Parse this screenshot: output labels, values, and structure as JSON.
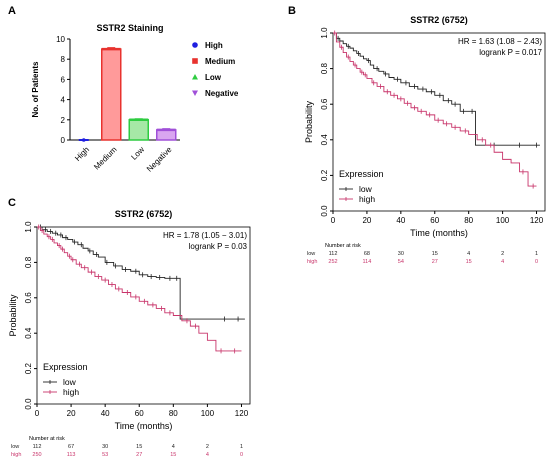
{
  "panels": {
    "a": "A",
    "b": "B",
    "c": "C"
  },
  "chart_data": [
    {
      "panel": "A",
      "type": "bar",
      "title": "SSTR2 Staining",
      "xlabel": "",
      "ylabel": "No. of Patients",
      "categories": [
        "High",
        "Medium",
        "Low",
        "Negative"
      ],
      "values": [
        0,
        9,
        2,
        1
      ],
      "errors": [
        0,
        0.12,
        0.08,
        0.1
      ],
      "ylim": [
        0,
        10
      ],
      "yticks": [
        0,
        2,
        4,
        6,
        8,
        10
      ],
      "colors": [
        "#1f1fe0",
        "#e8322e",
        "#2ecc40",
        "#a050d8"
      ],
      "fills": [
        "#1f1fe0",
        "#ff9a9a",
        "#a6e8a6",
        "#d9a6f0"
      ],
      "legend": {
        "position": "right",
        "entries": [
          {
            "label": "High",
            "marker": "circle",
            "color": "#1f1fe0"
          },
          {
            "label": "Medium",
            "marker": "square",
            "color": "#e8322e"
          },
          {
            "label": "Low",
            "marker": "triangle-up",
            "color": "#2ecc40"
          },
          {
            "label": "Negative",
            "marker": "triangle-down",
            "color": "#a050d8"
          }
        ]
      },
      "grid": false
    },
    {
      "panel": "B",
      "type": "line",
      "subtype": "kaplan-meier",
      "title": "SSTR2 (6752)",
      "xlabel": "Time (months)",
      "ylabel": "Probability",
      "xlim": [
        0,
        125
      ],
      "ylim": [
        0,
        1
      ],
      "xticks": [
        0,
        20,
        40,
        60,
        80,
        100,
        120
      ],
      "yticks": [
        "0.0",
        "0.2",
        "0.4",
        "0.6",
        "0.8",
        "1.0"
      ],
      "annotations": [
        "HR = 1.63 (1.08 − 2.43)",
        "logrank P = 0.017"
      ],
      "legend": {
        "title": "Expression",
        "position": "bottom-left"
      },
      "series": [
        {
          "name": "low",
          "color": "#222222",
          "x": [
            0,
            2,
            4,
            6,
            8,
            10,
            12,
            14,
            16,
            18,
            20,
            22,
            24,
            27,
            30,
            33,
            36,
            40,
            45,
            50,
            55,
            60,
            65,
            70,
            75,
            84,
            84,
            122
          ],
          "y": [
            1.0,
            0.97,
            0.955,
            0.94,
            0.925,
            0.915,
            0.9,
            0.885,
            0.87,
            0.855,
            0.845,
            0.82,
            0.8,
            0.785,
            0.77,
            0.75,
            0.74,
            0.72,
            0.7,
            0.685,
            0.67,
            0.65,
            0.62,
            0.6,
            0.56,
            0.56,
            0.37,
            0.37
          ],
          "censor_x": [
            3,
            9,
            15,
            21,
            26,
            31,
            38,
            43,
            48,
            53,
            58,
            63,
            68,
            72,
            77,
            82,
            95,
            110,
            120
          ]
        },
        {
          "name": "high",
          "color": "#c8346a",
          "x": [
            0,
            2,
            4,
            6,
            8,
            10,
            12,
            14,
            16,
            18,
            20,
            23,
            26,
            30,
            34,
            38,
            42,
            46,
            50,
            55,
            60,
            65,
            70,
            75,
            80,
            85,
            90,
            95,
            100,
            105,
            110,
            115,
            120
          ],
          "y": [
            1.0,
            0.95,
            0.92,
            0.89,
            0.865,
            0.84,
            0.82,
            0.8,
            0.78,
            0.765,
            0.745,
            0.72,
            0.7,
            0.67,
            0.65,
            0.63,
            0.605,
            0.58,
            0.56,
            0.54,
            0.51,
            0.49,
            0.47,
            0.45,
            0.43,
            0.4,
            0.37,
            0.33,
            0.29,
            0.27,
            0.22,
            0.14,
            0.14
          ],
          "censor_x": [
            1,
            5,
            9,
            13,
            17,
            19,
            24,
            28,
            32,
            36,
            40,
            44,
            48,
            52,
            57,
            62,
            67,
            72,
            78,
            88,
            93,
            112,
            118
          ]
        }
      ],
      "risk_table": {
        "title": "Number at risk",
        "times": [
          0,
          20,
          40,
          60,
          80,
          100,
          120
        ],
        "rows": [
          {
            "label": "low",
            "color": "#222222",
            "values": [
              "112",
              "68",
              "30",
              "15",
              "4",
              "2",
              "1"
            ]
          },
          {
            "label": "high",
            "color": "#c8346a",
            "values": [
              "252",
              "114",
              "54",
              "27",
              "15",
              "4",
              "0"
            ]
          }
        ]
      }
    },
    {
      "panel": "C",
      "type": "line",
      "subtype": "kaplan-meier",
      "title": "SSTR2 (6752)",
      "xlabel": "Time (months)",
      "ylabel": "Probability",
      "xlim": [
        0,
        125
      ],
      "ylim": [
        0,
        1
      ],
      "xticks": [
        0,
        20,
        40,
        60,
        80,
        100,
        120
      ],
      "yticks": [
        "0.0",
        "0.2",
        "0.4",
        "0.6",
        "0.8",
        "1.0"
      ],
      "annotations": [
        "HR = 1.78 (1.05 − 3.01)",
        "logrank P = 0.03"
      ],
      "legend": {
        "title": "Expression",
        "position": "bottom-left"
      },
      "series": [
        {
          "name": "low",
          "color": "#222222",
          "x": [
            0,
            3,
            6,
            9,
            12,
            15,
            18,
            21,
            24,
            27,
            30,
            33,
            36,
            40,
            45,
            50,
            55,
            60,
            65,
            70,
            75,
            84,
            84,
            122
          ],
          "y": [
            1.0,
            0.985,
            0.975,
            0.965,
            0.955,
            0.94,
            0.93,
            0.915,
            0.9,
            0.88,
            0.865,
            0.845,
            0.83,
            0.8,
            0.78,
            0.76,
            0.75,
            0.73,
            0.72,
            0.715,
            0.71,
            0.71,
            0.48,
            0.48
          ],
          "censor_x": [
            2,
            5,
            8,
            11,
            14,
            17,
            22,
            26,
            31,
            35,
            41,
            46,
            52,
            58,
            62,
            67,
            72,
            78,
            82,
            110,
            118
          ]
        },
        {
          "name": "high",
          "color": "#c8346a",
          "x": [
            0,
            2,
            4,
            6,
            8,
            10,
            12,
            14,
            16,
            18,
            20,
            23,
            26,
            30,
            34,
            38,
            42,
            46,
            50,
            55,
            60,
            65,
            70,
            75,
            80,
            85,
            90,
            95,
            100,
            105,
            112,
            120
          ],
          "y": [
            1.0,
            0.98,
            0.96,
            0.945,
            0.93,
            0.91,
            0.895,
            0.875,
            0.855,
            0.835,
            0.815,
            0.79,
            0.77,
            0.745,
            0.72,
            0.7,
            0.675,
            0.65,
            0.63,
            0.605,
            0.58,
            0.56,
            0.54,
            0.515,
            0.5,
            0.47,
            0.44,
            0.4,
            0.36,
            0.3,
            0.3,
            0.3
          ],
          "censor_x": [
            1,
            3,
            7,
            9,
            13,
            15,
            19,
            21,
            25,
            28,
            32,
            36,
            40,
            44,
            48,
            53,
            58,
            63,
            68,
            73,
            78,
            88,
            93,
            108,
            116
          ]
        }
      ],
      "risk_table": {
        "title": "Number at risk",
        "times": [
          0,
          20,
          40,
          60,
          80,
          100,
          120
        ],
        "rows": [
          {
            "label": "low",
            "color": "#222222",
            "values": [
              "112",
              "67",
              "30",
              "15",
              "4",
              "2",
              "1"
            ]
          },
          {
            "label": "high",
            "color": "#c8346a",
            "values": [
              "250",
              "113",
              "53",
              "27",
              "15",
              "4",
              "0"
            ]
          }
        ]
      }
    }
  ]
}
